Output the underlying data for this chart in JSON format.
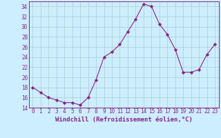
{
  "xlabel": "Windchill (Refroidissement éolien,°C)",
  "x": [
    0,
    1,
    2,
    3,
    4,
    5,
    6,
    7,
    8,
    9,
    10,
    11,
    12,
    13,
    14,
    15,
    16,
    17,
    18,
    19,
    20,
    21,
    22,
    23
  ],
  "y": [
    18,
    17,
    16,
    15.5,
    15,
    15,
    14.5,
    16,
    19.5,
    24,
    25,
    26.5,
    29,
    31.5,
    34.5,
    34,
    30.5,
    28.5,
    25.5,
    21,
    21,
    21.5,
    24.5,
    26.5
  ],
  "line_color": "#882288",
  "marker": "D",
  "marker_size": 2.2,
  "bg_color": "#cceeff",
  "grid_color": "#aacccc",
  "ylim": [
    14,
    35
  ],
  "xlim": [
    -0.5,
    23.5
  ],
  "yticks": [
    14,
    16,
    18,
    20,
    22,
    24,
    26,
    28,
    30,
    32,
    34
  ],
  "xticks": [
    0,
    1,
    2,
    3,
    4,
    5,
    6,
    7,
    8,
    9,
    10,
    11,
    12,
    13,
    14,
    15,
    16,
    17,
    18,
    19,
    20,
    21,
    22,
    23
  ],
  "tick_fontsize": 5.5,
  "label_fontsize": 6.5
}
